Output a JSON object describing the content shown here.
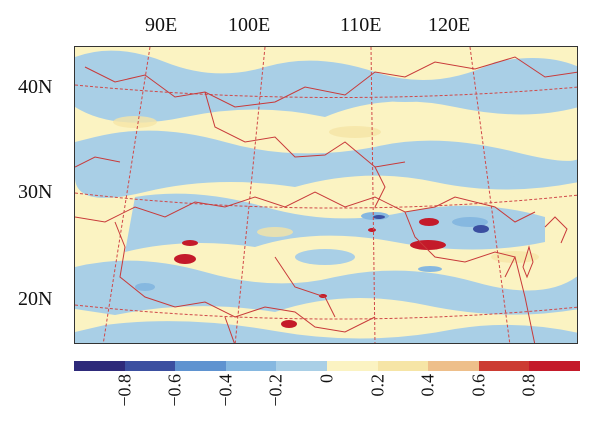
{
  "map": {
    "lon_labels": [
      "90E",
      "100E",
      "110E",
      "120E"
    ],
    "lat_labels": [
      "40N",
      "30N",
      "20N"
    ],
    "colors": {
      "background": "#fbf3c2",
      "light_blue": "#a9cfe6",
      "boundary": "#c83a3a",
      "grid": "#d04848"
    }
  },
  "colorbar": {
    "colors": [
      "#2e2a7a",
      "#3b4fa0",
      "#5f93d0",
      "#86b8e0",
      "#a9cfe6",
      "#fbf3c2",
      "#f6e5a6",
      "#eebf8a",
      "#cc3b32",
      "#c41a2a"
    ],
    "tick_labels": [
      "−0.8",
      "−0.6",
      "−0.4",
      "−0.2",
      "0",
      "0.2",
      "0.4",
      "0.6",
      "0.8"
    ]
  }
}
